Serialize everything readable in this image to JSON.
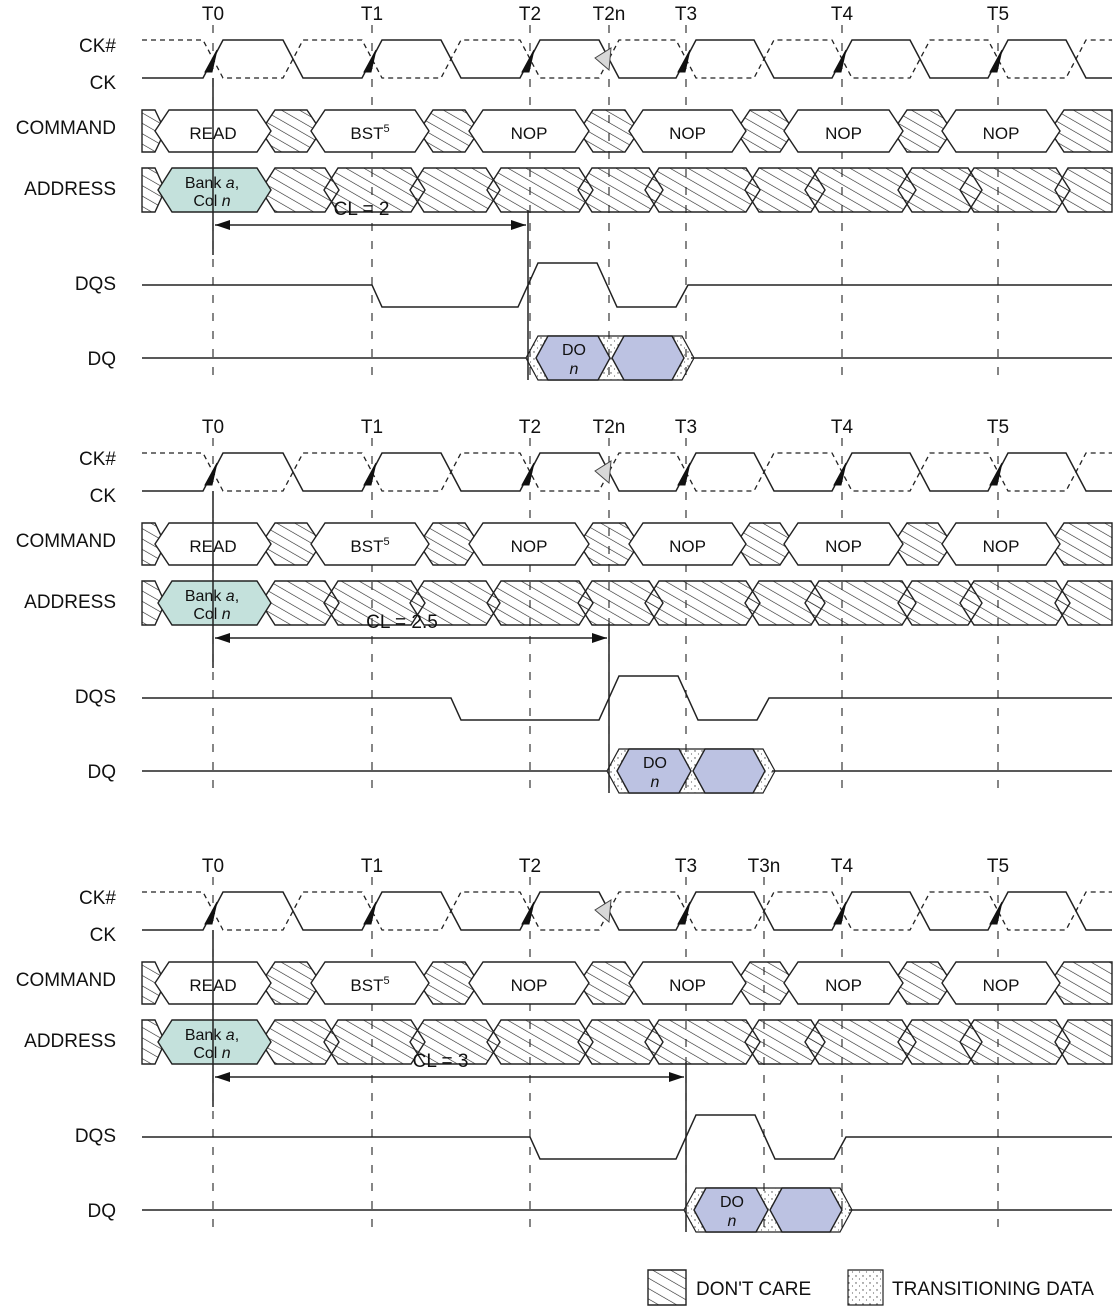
{
  "signals": [
    "CK#",
    "CK",
    "COMMAND",
    "ADDRESS",
    "DQS",
    "DQ"
  ],
  "commands": {
    "read": "READ",
    "bst": "BST",
    "bst_sup": "5",
    "nop": "NOP"
  },
  "address": {
    "line1_prefix": "Bank ",
    "line1_var": "a",
    "line1_suffix": ",",
    "line2_prefix": "Col ",
    "line2_var": "n"
  },
  "data_out": {
    "top": "DO",
    "bottom": "n"
  },
  "panels": [
    {
      "ticks": [
        "T0",
        "T1",
        "T2",
        "T2n",
        "T3",
        "T4",
        "T5"
      ],
      "cl_label": "CL = 2"
    },
    {
      "ticks": [
        "T0",
        "T1",
        "T2",
        "T2n",
        "T3",
        "T4",
        "T5"
      ],
      "cl_label": "CL = 2.5"
    },
    {
      "ticks": [
        "T0",
        "T1",
        "T2",
        "T3",
        "T3n",
        "T4",
        "T5"
      ],
      "cl_label": "CL = 3"
    }
  ],
  "legend": {
    "dont_care": "DON'T CARE",
    "transitioning": "TRANSITIONING DATA"
  }
}
